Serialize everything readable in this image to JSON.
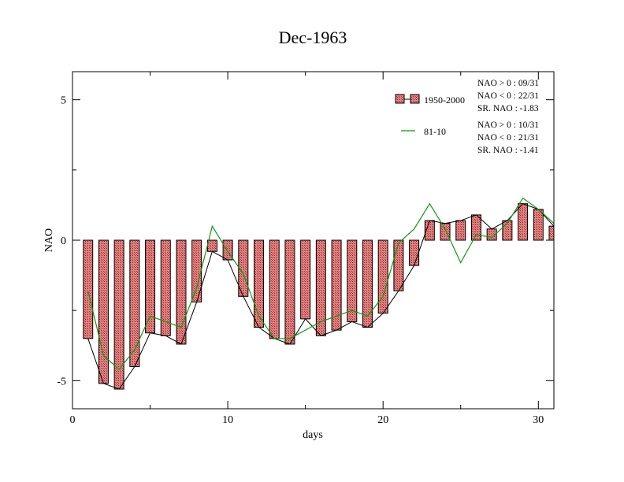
{
  "chart_data": {
    "type": "bar",
    "title": "Dec-1963",
    "xlabel": "days",
    "ylabel": "NAO",
    "xlim": [
      0,
      31
    ],
    "ylim": [
      -6,
      6
    ],
    "x_ticks": [
      0,
      10,
      20,
      30
    ],
    "y_ticks": [
      -5,
      0,
      5
    ],
    "grid": false,
    "legend_position": "top-right",
    "x": [
      1,
      2,
      3,
      4,
      5,
      6,
      7,
      8,
      9,
      10,
      11,
      12,
      13,
      14,
      15,
      16,
      17,
      18,
      19,
      20,
      21,
      22,
      23,
      24,
      25,
      26,
      27,
      28,
      29,
      30,
      31
    ],
    "series": [
      {
        "name": "1950-2000",
        "style": "bar-with-black-line",
        "values": [
          -3.5,
          -5.1,
          -5.3,
          -4.5,
          -3.3,
          -3.4,
          -3.7,
          -2.2,
          -0.4,
          -0.7,
          -2.0,
          -3.1,
          -3.5,
          -3.7,
          -2.8,
          -3.4,
          -3.2,
          -2.9,
          -3.1,
          -2.6,
          -1.8,
          -0.9,
          0.7,
          0.6,
          0.7,
          0.9,
          0.4,
          0.7,
          1.3,
          1.1,
          0.5
        ],
        "stats": [
          "NAO > 0 : 09/31",
          "NAO < 0 : 22/31",
          "SR. NAO : -1.83"
        ]
      },
      {
        "name": "81-10",
        "style": "green-line",
        "values": [
          -1.8,
          -4.1,
          -4.6,
          -3.9,
          -2.7,
          -2.9,
          -3.1,
          -1.7,
          0.5,
          -0.4,
          -1.2,
          -2.7,
          -3.5,
          -3.5,
          -3.2,
          -2.9,
          -2.7,
          -2.5,
          -2.7,
          -2.0,
          -0.1,
          0.4,
          1.3,
          0.4,
          -0.8,
          0.2,
          0.1,
          0.6,
          1.5,
          1.1,
          0.6
        ],
        "stats": [
          "NAO > 0 : 10/31",
          "NAO < 0 : 21/31",
          "SR. NAO : -1.41"
        ]
      }
    ]
  },
  "colors": {
    "bar_fill": "#e07070",
    "bar_stroke": "#000000",
    "series1_line": "#000000",
    "series2_line": "#119911",
    "axis": "#000000"
  }
}
